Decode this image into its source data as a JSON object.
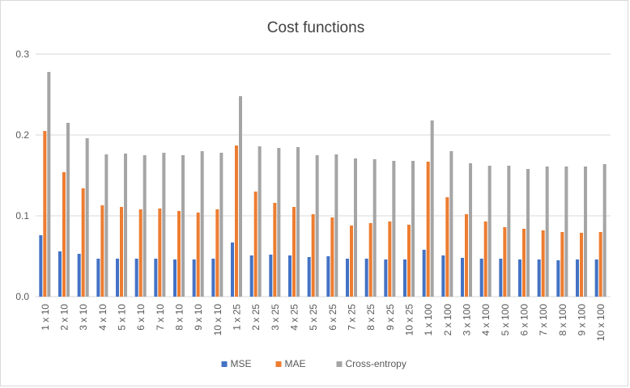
{
  "chart_data": {
    "type": "bar",
    "title": "Cost functions",
    "xlabel": "",
    "ylabel": "",
    "ylim": [
      0,
      0.3
    ],
    "yticks": [
      "0.0",
      "0.1",
      "0.2",
      "0.3"
    ],
    "ytick_values": [
      0,
      0.1,
      0.2,
      0.3
    ],
    "grid": true,
    "legend_position": "bottom",
    "categories": [
      "1 x 10",
      "2 x 10",
      "3 x 10",
      "4 x 10",
      "5 x 10",
      "6 x 10",
      "7 x 10",
      "8 x 10",
      "9 x 10",
      "10 x 10",
      "1 x 25",
      "2 x 25",
      "3 x 25",
      "4 x 25",
      "5 x 25",
      "6 x 25",
      "7 x 25",
      "8 x 25",
      "9 x 25",
      "10 x 25",
      "1 x 100",
      "2 x 100",
      "3 x 100",
      "4 x 100",
      "5 x 100",
      "6 x 100",
      "7 x 100",
      "8 x 100",
      "9 x 100",
      "10 x 100"
    ],
    "series": [
      {
        "name": "MSE",
        "color": "#4472c4",
        "values": [
          0.076,
          0.056,
          0.053,
          0.047,
          0.047,
          0.047,
          0.047,
          0.046,
          0.046,
          0.047,
          0.067,
          0.051,
          0.052,
          0.051,
          0.049,
          0.05,
          0.047,
          0.047,
          0.046,
          0.046,
          0.058,
          0.051,
          0.048,
          0.047,
          0.047,
          0.046,
          0.046,
          0.045,
          0.046,
          0.046
        ]
      },
      {
        "name": "MAE",
        "color": "#ed7d31",
        "values": [
          0.205,
          0.154,
          0.134,
          0.113,
          0.111,
          0.108,
          0.109,
          0.106,
          0.104,
          0.108,
          0.187,
          0.13,
          0.116,
          0.111,
          0.102,
          0.098,
          0.088,
          0.091,
          0.093,
          0.089,
          0.167,
          0.123,
          0.102,
          0.093,
          0.086,
          0.084,
          0.082,
          0.08,
          0.079,
          0.08
        ]
      },
      {
        "name": "Cross-entropy",
        "color": "#a5a5a5",
        "values": [
          0.278,
          0.215,
          0.196,
          0.176,
          0.177,
          0.175,
          0.178,
          0.175,
          0.18,
          0.178,
          0.248,
          0.186,
          0.184,
          0.185,
          0.175,
          0.176,
          0.171,
          0.17,
          0.168,
          0.168,
          0.218,
          0.18,
          0.165,
          0.162,
          0.162,
          0.158,
          0.161,
          0.161,
          0.161,
          0.164
        ]
      }
    ]
  }
}
